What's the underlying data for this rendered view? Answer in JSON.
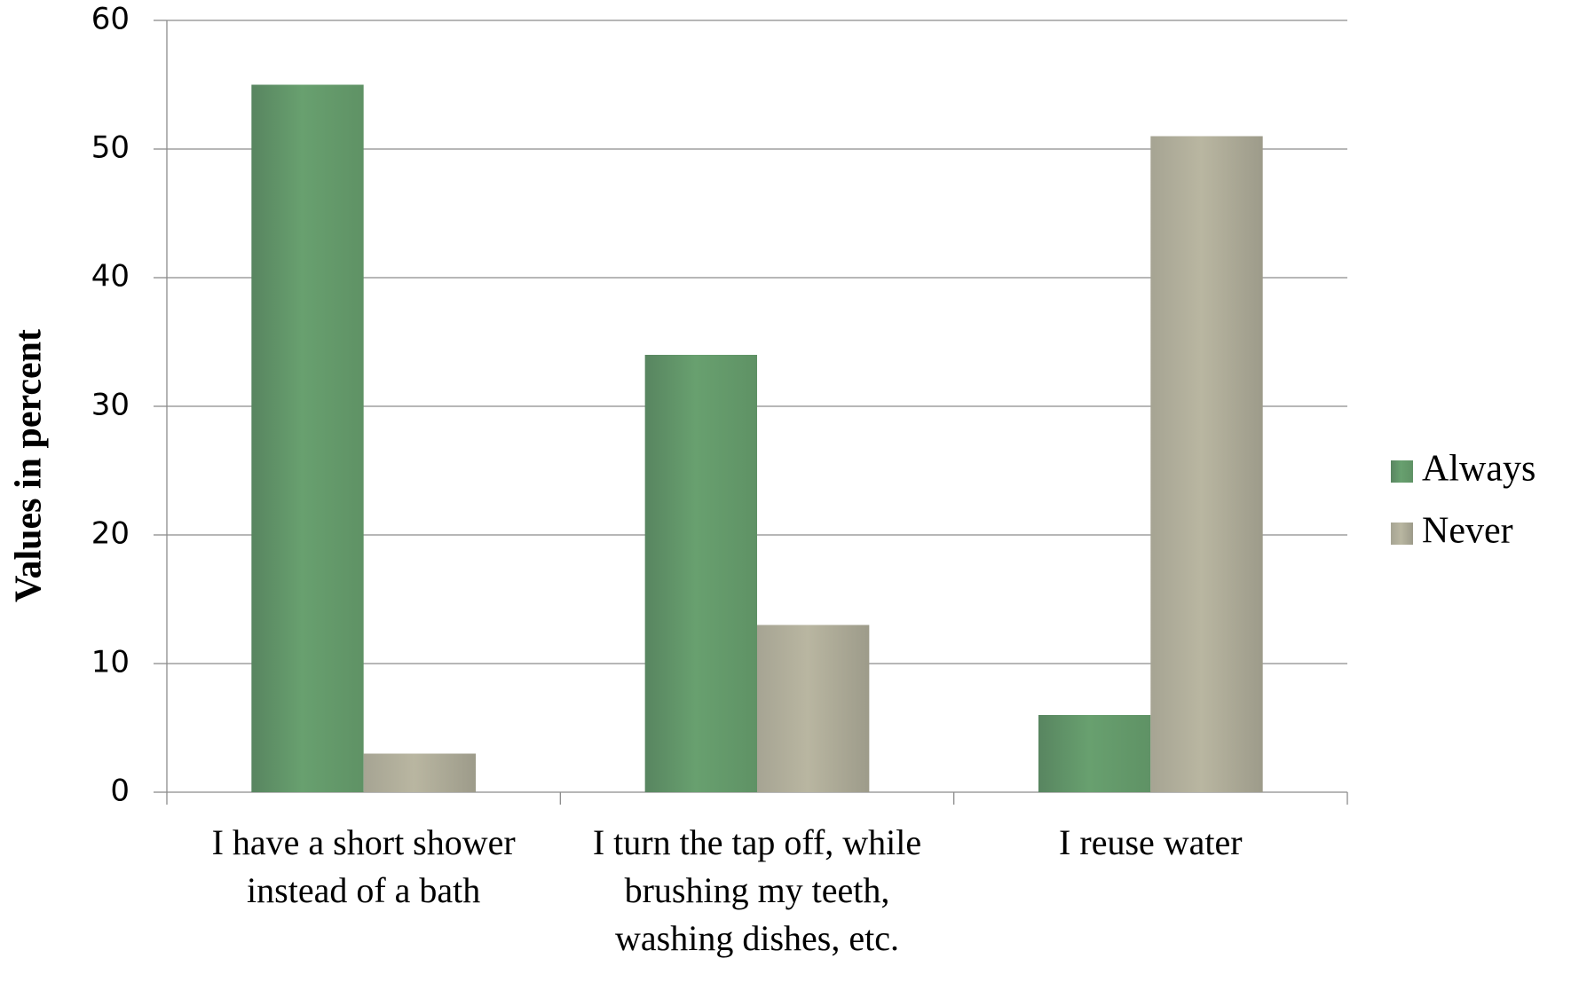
{
  "chart_data": {
    "type": "bar",
    "y_label": "Values in percent",
    "categories": [
      "I have a short shower instead of a bath",
      "I turn the tap off, while brushing  my teeth, washing dishes, etc.",
      "I reuse water"
    ],
    "series": [
      {
        "name": "Always",
        "color": "#65986b",
        "values": [
          55,
          34,
          6
        ]
      },
      {
        "name": "Never",
        "color": "#b4b19d",
        "values": [
          3,
          13,
          51
        ]
      }
    ],
    "ylim": [
      0,
      60
    ],
    "yticks": [
      0,
      10,
      20,
      30,
      40,
      50,
      60
    ],
    "grid": true,
    "legend": "right"
  }
}
